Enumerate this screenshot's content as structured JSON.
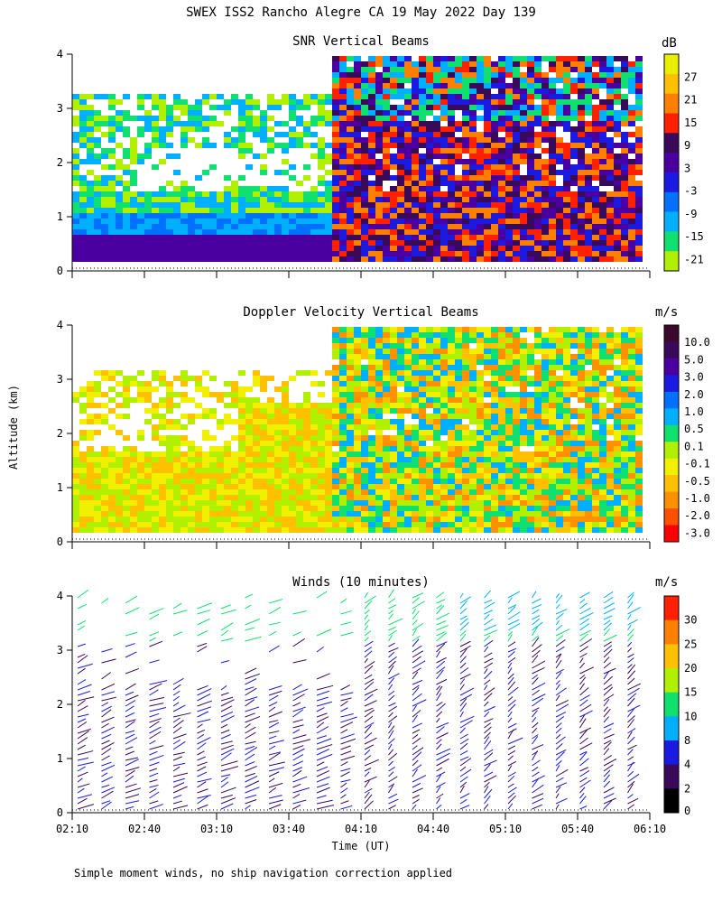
{
  "header": {
    "title": "SWEX ISS2 Rancho Alegre CA  19 May 2022 Day 139"
  },
  "axis": {
    "ylabel": "Altitude (km)",
    "xlabel": "Time (UT)",
    "yticks": [
      "0",
      "1",
      "2",
      "3",
      "4"
    ],
    "xticks": [
      "02:10",
      "02:40",
      "03:10",
      "03:40",
      "04:10",
      "04:40",
      "05:10",
      "05:40",
      "06:10"
    ]
  },
  "footer": {
    "note": "Simple moment winds, no ship navigation correction applied"
  },
  "colors": {
    "frame": "#000000"
  },
  "chart_data": [
    {
      "type": "heatmap",
      "title": "SNR Vertical Beams",
      "colorbar_unit": "dB",
      "xlim": [
        "02:10",
        "06:10"
      ],
      "ylim": [
        0,
        4
      ],
      "colorbar": {
        "labels": [
          "27",
          "21",
          "15",
          "9",
          "3",
          "-3",
          "-9",
          "-15",
          "-21"
        ],
        "colors": [
          "#e8f000",
          "#ffc000",
          "#ff8000",
          "#ff2000",
          "#3a0a5a",
          "#4a00a0",
          "#1a1ae0",
          "#0070ff",
          "#00b0ff",
          "#10e070",
          "#b0f000"
        ]
      }
    },
    {
      "type": "heatmap",
      "title": "Doppler Velocity Vertical Beams",
      "colorbar_unit": "m/s",
      "xlim": [
        "02:10",
        "06:10"
      ],
      "ylim": [
        0,
        4
      ],
      "colorbar": {
        "labels": [
          "10.0",
          "5.0",
          "3.0",
          "2.0",
          "1.0",
          "0.5",
          "0.1",
          "-0.1",
          "-0.5",
          "-1.0",
          "-2.0",
          "-3.0"
        ],
        "colors": [
          "#3a0a2a",
          "#3a0a5a",
          "#4a00a0",
          "#1a1ae0",
          "#0070ff",
          "#00b0ff",
          "#10e070",
          "#b0f000",
          "#f0f000",
          "#ffc000",
          "#ff9000",
          "#ff5000",
          "#ff0000"
        ]
      }
    },
    {
      "type": "scatter",
      "title": "Winds (10 minutes)",
      "colorbar_unit": "m/s",
      "xlim": [
        "02:10",
        "06:10"
      ],
      "ylim": [
        0,
        4
      ],
      "colorbar": {
        "labels": [
          "30",
          "25",
          "20",
          "15",
          "10",
          "8",
          "4",
          "2",
          "0"
        ],
        "colors": [
          "#ff2000",
          "#ff8000",
          "#ffc000",
          "#b0f000",
          "#10e070",
          "#00b0ff",
          "#1a1ae0",
          "#3a0a5a",
          "#000000"
        ]
      }
    }
  ]
}
